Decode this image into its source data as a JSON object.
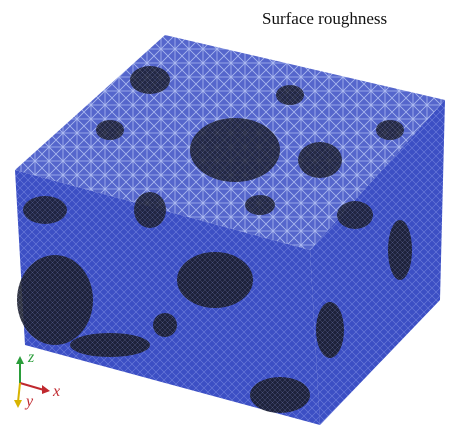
{
  "figure": {
    "label": "Surface roughness",
    "axes": {
      "z": "z",
      "x": "x",
      "y": "y"
    }
  }
}
